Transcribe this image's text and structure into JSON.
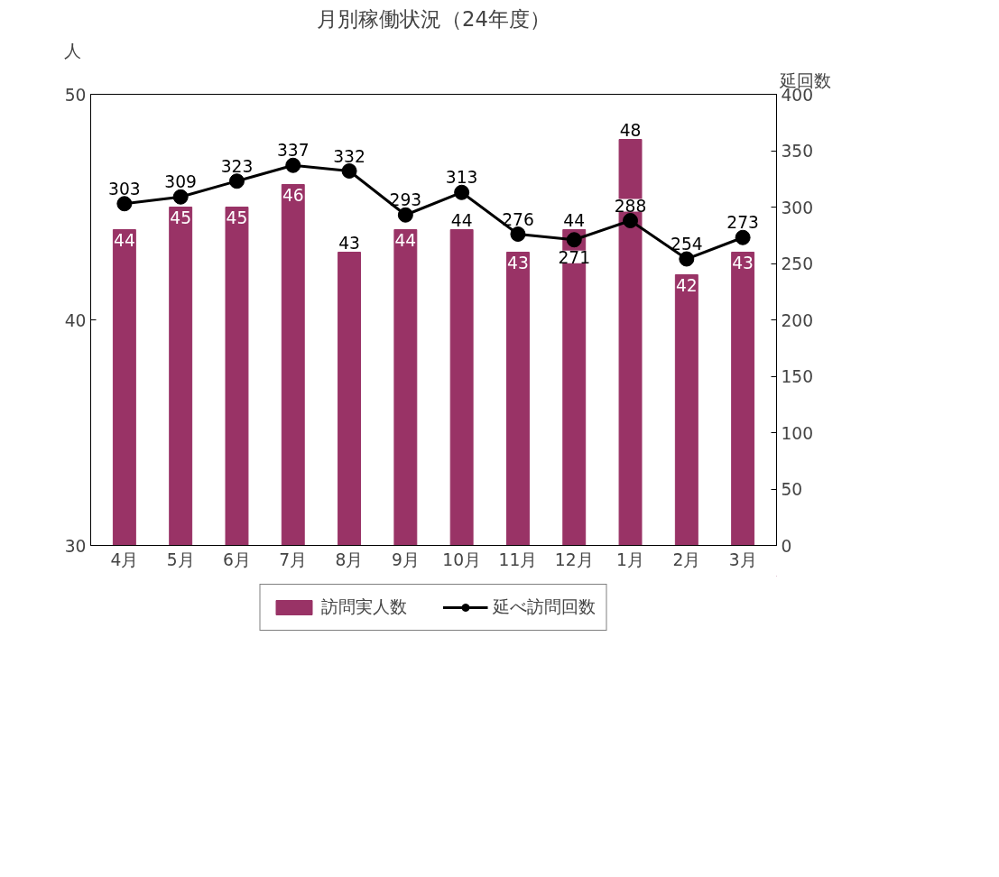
{
  "chart_data": {
    "type": "bar",
    "title": "月別稼働状況（24年度）",
    "ylabel": "人",
    "y2label": "延回数",
    "categories": [
      "4月",
      "5月",
      "6月",
      "7月",
      "8月",
      "9月",
      "10月",
      "11月",
      "12月",
      "1月",
      "2月",
      "3月"
    ],
    "series": [
      {
        "name": "訪問実人数",
        "color": "#993366",
        "values": [
          44,
          45,
          45,
          46,
          43,
          44,
          44,
          43,
          44,
          48,
          42,
          43
        ]
      },
      {
        "name": "延べ訪問回数",
        "type": "line",
        "axis": "y2",
        "color": "#000000",
        "values": [
          303,
          309,
          323,
          337,
          332,
          293,
          313,
          276,
          271,
          288,
          254,
          273
        ]
      }
    ],
    "ylim": [
      30,
      50
    ],
    "yticks": [
      30,
      40,
      50
    ],
    "y2lim": [
      0,
      400
    ],
    "y2ticks": [
      0,
      50,
      100,
      150,
      200,
      250,
      300,
      350,
      400
    ],
    "data_labels": true,
    "legend": "bottom",
    "grid": false,
    "marker": "circle",
    "line_style": "solid"
  }
}
